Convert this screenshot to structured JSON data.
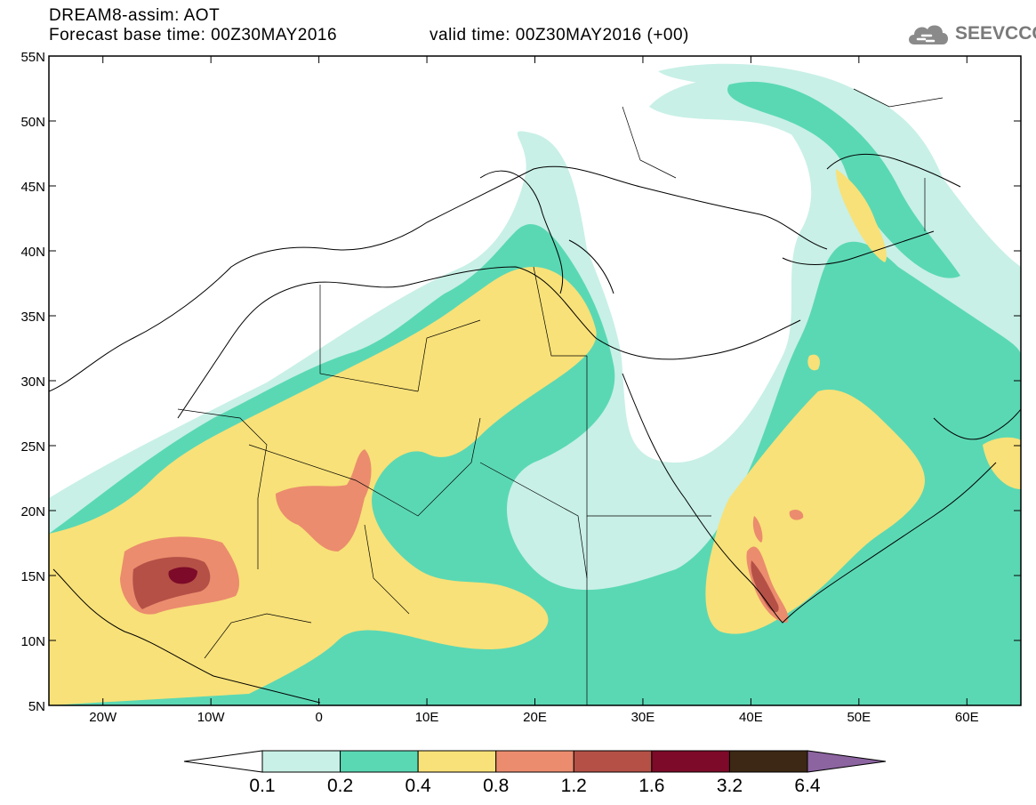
{
  "header": {
    "title": "DREAM8-assim: AOT",
    "base_time": "Forecast base time: 00Z30MAY2016",
    "valid_time": "valid time: 00Z30MAY2016 (+00)"
  },
  "logo": {
    "text": "SEEVCCC",
    "icon": "cloud-icon"
  },
  "map": {
    "lat_labels": [
      "55N",
      "50N",
      "45N",
      "40N",
      "35N",
      "30N",
      "25N",
      "20N",
      "15N",
      "10N",
      "5N"
    ],
    "lon_labels": [
      "20W",
      "10W",
      "0",
      "10E",
      "20E",
      "30E",
      "40E",
      "50E",
      "60E"
    ],
    "lon_range": [
      -25,
      65
    ],
    "lat_range": [
      5,
      55
    ]
  },
  "colorbar": {
    "labels": [
      "0.1",
      "0.2",
      "0.4",
      "0.8",
      "1.2",
      "1.6",
      "3.2",
      "6.4"
    ],
    "colors": [
      "#ffffff",
      "#c8f0e6",
      "#5ad8b4",
      "#f8e178",
      "#eb8c6e",
      "#b45046",
      "#7d0a28",
      "#3c2814",
      "#8c64a0"
    ]
  }
}
